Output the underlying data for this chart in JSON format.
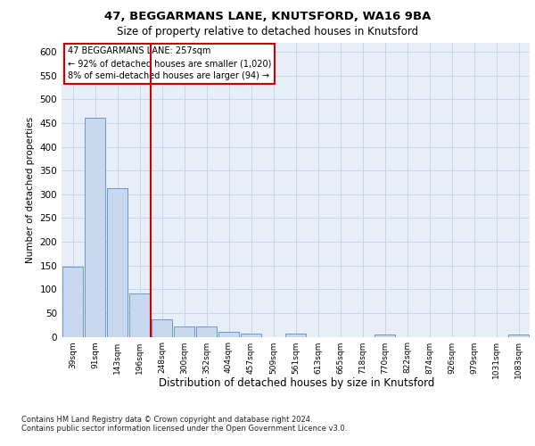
{
  "title1": "47, BEGGARMANS LANE, KNUTSFORD, WA16 9BA",
  "title2": "Size of property relative to detached houses in Knutsford",
  "xlabel": "Distribution of detached houses by size in Knutsford",
  "ylabel": "Number of detached properties",
  "annotation_line1": "47 BEGGARMANS LANE: 257sqm",
  "annotation_line2": "← 92% of detached houses are smaller (1,020)",
  "annotation_line3": "8% of semi-detached houses are larger (94) →",
  "footer1": "Contains HM Land Registry data © Crown copyright and database right 2024.",
  "footer2": "Contains public sector information licensed under the Open Government Licence v3.0.",
  "bar_color": "#c8d8ee",
  "bar_edge_color": "#6699cc",
  "vline_color": "#cc0000",
  "annotation_box_color": "#cc0000",
  "grid_color": "#c8d4e8",
  "bg_color": "#e8eef8",
  "categories": [
    "39sqm",
    "91sqm",
    "143sqm",
    "196sqm",
    "248sqm",
    "300sqm",
    "352sqm",
    "404sqm",
    "457sqm",
    "509sqm",
    "561sqm",
    "613sqm",
    "665sqm",
    "718sqm",
    "770sqm",
    "822sqm",
    "874sqm",
    "926sqm",
    "979sqm",
    "1031sqm",
    "1083sqm"
  ],
  "values": [
    147,
    462,
    313,
    92,
    36,
    21,
    21,
    11,
    6,
    0,
    7,
    0,
    0,
    0,
    5,
    0,
    0,
    0,
    0,
    0,
    5
  ],
  "vline_position": 3.5,
  "ylim": [
    0,
    620
  ],
  "yticks": [
    0,
    50,
    100,
    150,
    200,
    250,
    300,
    350,
    400,
    450,
    500,
    550,
    600
  ]
}
